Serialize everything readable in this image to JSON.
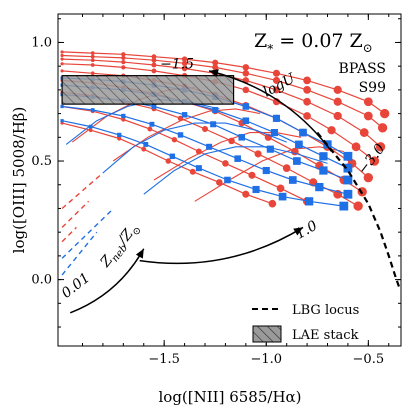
{
  "chart_data": {
    "type": "line",
    "xlabel": "log([NII] 6585/Hα)",
    "ylabel": "log([OIII] 5008/Hβ)",
    "xlim": [
      -2.02,
      -0.34
    ],
    "ylim": [
      -0.28,
      1.12
    ],
    "x_ticks": [
      -1.5,
      -1.0,
      -0.5
    ],
    "y_ticks": [
      0.0,
      0.5,
      1.0
    ],
    "x_tick_labels": [
      "−1.5",
      "−1.0",
      "−0.5"
    ],
    "y_tick_labels": [
      "0.0",
      "0.5",
      "1.0"
    ],
    "grid": false,
    "title": "Z* = 0.07 Z⊙",
    "title_main": "Z",
    "title_sub": "*",
    "title_rest": " = 0.07 Z",
    "title_sym": "⊙",
    "series": [
      {
        "name": "BPASS",
        "color": "#e8463a",
        "marker": "circle",
        "families": [
          {
            "x": [
              -2.0,
              -1.85,
              -1.7,
              -1.55,
              -1.4,
              -1.25,
              -1.1,
              -0.95,
              -0.8,
              -0.65,
              -0.5,
              -0.42
            ],
            "y": [
              0.96,
              0.955,
              0.95,
              0.94,
              0.93,
              0.915,
              0.895,
              0.87,
              0.84,
              0.8,
              0.75,
              0.7
            ]
          },
          {
            "x": [
              -2.0,
              -1.85,
              -1.7,
              -1.55,
              -1.4,
              -1.25,
              -1.1,
              -0.95,
              -0.8,
              -0.65,
              -0.5,
              -0.43
            ],
            "y": [
              0.945,
              0.94,
              0.935,
              0.925,
              0.912,
              0.895,
              0.87,
              0.84,
              0.8,
              0.75,
              0.69,
              0.64
            ]
          },
          {
            "x": [
              -2.0,
              -1.85,
              -1.7,
              -1.55,
              -1.4,
              -1.25,
              -1.1,
              -0.95,
              -0.8,
              -0.65,
              -0.52,
              -0.44
            ],
            "y": [
              0.93,
              0.925,
              0.917,
              0.905,
              0.89,
              0.87,
              0.84,
              0.8,
              0.75,
              0.69,
              0.62,
              0.56
            ]
          },
          {
            "x": [
              -2.0,
              -1.85,
              -1.7,
              -1.55,
              -1.4,
              -1.25,
              -1.1,
              -0.95,
              -0.8,
              -0.68,
              -0.56,
              -0.47
            ],
            "y": [
              0.91,
              0.905,
              0.895,
              0.88,
              0.86,
              0.835,
              0.8,
              0.75,
              0.69,
              0.63,
              0.56,
              0.5
            ]
          },
          {
            "x": [
              -2.0,
              -1.85,
              -1.7,
              -1.55,
              -1.4,
              -1.25,
              -1.1,
              -0.95,
              -0.82,
              -0.7,
              -0.58,
              -0.5
            ],
            "y": [
              0.88,
              0.87,
              0.86,
              0.84,
              0.815,
              0.78,
              0.735,
              0.68,
              0.62,
              0.56,
              0.49,
              0.43
            ]
          },
          {
            "x": [
              -2.0,
              -1.85,
              -1.7,
              -1.55,
              -1.4,
              -1.25,
              -1.12,
              -0.99,
              -0.86,
              -0.74,
              -0.62,
              -0.53
            ],
            "y": [
              0.84,
              0.83,
              0.81,
              0.785,
              0.75,
              0.71,
              0.66,
              0.6,
              0.54,
              0.48,
              0.42,
              0.37
            ]
          },
          {
            "x": [
              -2.0,
              -1.85,
              -1.7,
              -1.55,
              -1.42,
              -1.3,
              -1.17,
              -1.04,
              -0.9,
              -0.77,
              -0.65,
              -0.55
            ],
            "y": [
              0.79,
              0.775,
              0.75,
              0.72,
              0.68,
              0.635,
              0.585,
              0.53,
              0.47,
              0.41,
              0.36,
              0.31
            ]
          },
          {
            "x": [
              -2.0,
              -1.85,
              -1.7,
              -1.57,
              -1.45,
              -1.33,
              -1.2,
              -1.07,
              -0.93,
              -0.8
            ],
            "y": [
              0.73,
              0.71,
              0.675,
              0.635,
              0.59,
              0.54,
              0.49,
              0.44,
              0.385,
              0.33
            ]
          },
          {
            "x": [
              -2.0,
              -1.86,
              -1.72,
              -1.6,
              -1.48,
              -1.36,
              -1.23,
              -1.1,
              -0.97
            ],
            "y": [
              0.66,
              0.63,
              0.595,
              0.55,
              0.5,
              0.455,
              0.41,
              0.36,
              0.32
            ]
          }
        ],
        "metallicity_tracks": [
          {
            "x": [
              -1.35,
              -1.18,
              -1.02,
              -0.87,
              -0.74,
              -0.62
            ],
            "y": [
              0.33,
              0.42,
              0.5,
              0.55,
              0.56,
              0.54
            ]
          },
          {
            "x": [
              -1.55,
              -1.38,
              -1.22,
              -1.08,
              -0.95,
              -0.83
            ],
            "y": [
              0.42,
              0.51,
              0.58,
              0.62,
              0.62,
              0.6
            ]
          },
          {
            "x": [
              -1.75,
              -1.58,
              -1.42,
              -1.28,
              -1.15,
              -1.03
            ],
            "y": [
              0.5,
              0.6,
              0.67,
              0.71,
              0.72,
              0.7
            ]
          },
          {
            "x": [
              -1.95,
              -1.78,
              -1.62,
              -1.48,
              -1.35
            ],
            "y": [
              0.58,
              0.69,
              0.76,
              0.8,
              0.81
            ]
          }
        ],
        "dashed_tracks": [
          {
            "x": [
              -2.0,
              -1.93
            ],
            "y": [
              0.16,
              0.22
            ]
          },
          {
            "x": [
              -2.0,
              -1.87
            ],
            "y": [
              0.22,
              0.33
            ]
          },
          {
            "x": [
              -2.0,
              -1.8
            ],
            "y": [
              0.3,
              0.45
            ]
          }
        ]
      },
      {
        "name": "S99",
        "color": "#1f6fe5",
        "marker": "square",
        "families": [
          {
            "x": [
              -2.0,
              -1.85,
              -1.7,
              -1.55,
              -1.4,
              -1.25,
              -1.1,
              -0.95,
              -0.82,
              -0.7,
              -0.6
            ],
            "y": [
              0.85,
              0.845,
              0.835,
              0.82,
              0.8,
              0.77,
              0.73,
              0.68,
              0.62,
              0.57,
              0.52
            ]
          },
          {
            "x": [
              -2.0,
              -1.85,
              -1.7,
              -1.55,
              -1.4,
              -1.25,
              -1.1,
              -0.96,
              -0.84,
              -0.72,
              -0.6
            ],
            "y": [
              0.82,
              0.81,
              0.8,
              0.78,
              0.75,
              0.715,
              0.67,
              0.62,
              0.57,
              0.52,
              0.47
            ]
          },
          {
            "x": [
              -2.0,
              -1.85,
              -1.7,
              -1.55,
              -1.4,
              -1.26,
              -1.12,
              -0.98,
              -0.85,
              -0.72,
              -0.6
            ],
            "y": [
              0.78,
              0.77,
              0.755,
              0.73,
              0.695,
              0.655,
              0.6,
              0.55,
              0.5,
              0.46,
              0.42
            ]
          },
          {
            "x": [
              -2.0,
              -1.85,
              -1.7,
              -1.56,
              -1.42,
              -1.28,
              -1.14,
              -1.0,
              -0.87,
              -0.74,
              -0.6
            ],
            "y": [
              0.73,
              0.715,
              0.69,
              0.655,
              0.61,
              0.56,
              0.51,
              0.46,
              0.42,
              0.39,
              0.36
            ]
          },
          {
            "x": [
              -2.0,
              -1.86,
              -1.72,
              -1.59,
              -1.46,
              -1.33,
              -1.19,
              -1.05,
              -0.92,
              -0.79,
              -0.62
            ],
            "y": [
              0.67,
              0.645,
              0.61,
              0.57,
              0.52,
              0.47,
              0.42,
              0.38,
              0.35,
              0.33,
              0.31
            ]
          }
        ],
        "metallicity_tracks": [
          {
            "x": [
              -1.6,
              -1.45,
              -1.3,
              -1.15,
              -1.0,
              -0.85,
              -0.7
            ],
            "y": [
              0.36,
              0.46,
              0.53,
              0.56,
              0.56,
              0.53,
              0.49
            ]
          },
          {
            "x": [
              -1.8,
              -1.65,
              -1.5,
              -1.35,
              -1.2,
              -1.05,
              -0.9
            ],
            "y": [
              0.45,
              0.56,
              0.63,
              0.66,
              0.66,
              0.63,
              0.58
            ]
          },
          {
            "x": [
              -1.98,
              -1.83,
              -1.68,
              -1.53,
              -1.38,
              -1.23
            ],
            "y": [
              0.57,
              0.67,
              0.73,
              0.76,
              0.75,
              0.72
            ]
          }
        ],
        "dashed_tracks": [
          {
            "x": [
              -2.0,
              -1.83
            ],
            "y": [
              0.02,
              0.2
            ]
          },
          {
            "x": [
              -2.0,
              -1.76
            ],
            "y": [
              0.09,
              0.29
            ]
          }
        ]
      }
    ],
    "lbg_locus": {
      "name": "LBG locus",
      "style": "dashed",
      "color": "#000000",
      "x": [
        -0.75,
        -0.6,
        -0.5,
        -0.44,
        -0.4,
        -0.37,
        -0.35
      ],
      "y": [
        0.62,
        0.46,
        0.32,
        0.2,
        0.1,
        0.02,
        -0.03
      ]
    },
    "lae_stack": {
      "name": "LAE stack",
      "x_range": [
        -2.0,
        -1.16
      ],
      "y_range": [
        0.74,
        0.86
      ]
    },
    "annotations": [
      {
        "text": "−1.5",
        "x": -1.52,
        "y": 0.89
      },
      {
        "text": "logU",
        "x": -1.0,
        "y": 0.77,
        "rotate": 28
      },
      {
        "text": "−3.0",
        "x": -0.52,
        "y": 0.44,
        "rotate": 52
      },
      {
        "text": "1.0",
        "x": -0.84,
        "y": 0.17,
        "rotate": 30
      },
      {
        "text": "0.01",
        "x": -1.98,
        "y": -0.08,
        "rotate": 38
      },
      {
        "text": "Z",
        "x": -1.78,
        "y": 0.05,
        "rotate": 52,
        "sub": "neb",
        "suffix": "/Z",
        "sym": "⊙"
      }
    ],
    "arrows": [
      {
        "from": [
          -0.68,
          0.54
        ],
        "to": [
          -1.28,
          0.88
        ]
      },
      {
        "from": [
          -1.62,
          0.08
        ],
        "to": [
          -0.82,
          0.22
        ]
      },
      {
        "from": [
          -1.96,
          -0.14
        ],
        "to": [
          -1.6,
          0.13
        ]
      }
    ]
  },
  "legend": {
    "bpass": "BPASS",
    "s99": "S99",
    "lbg": "LBG locus",
    "lae": "LAE stack"
  }
}
